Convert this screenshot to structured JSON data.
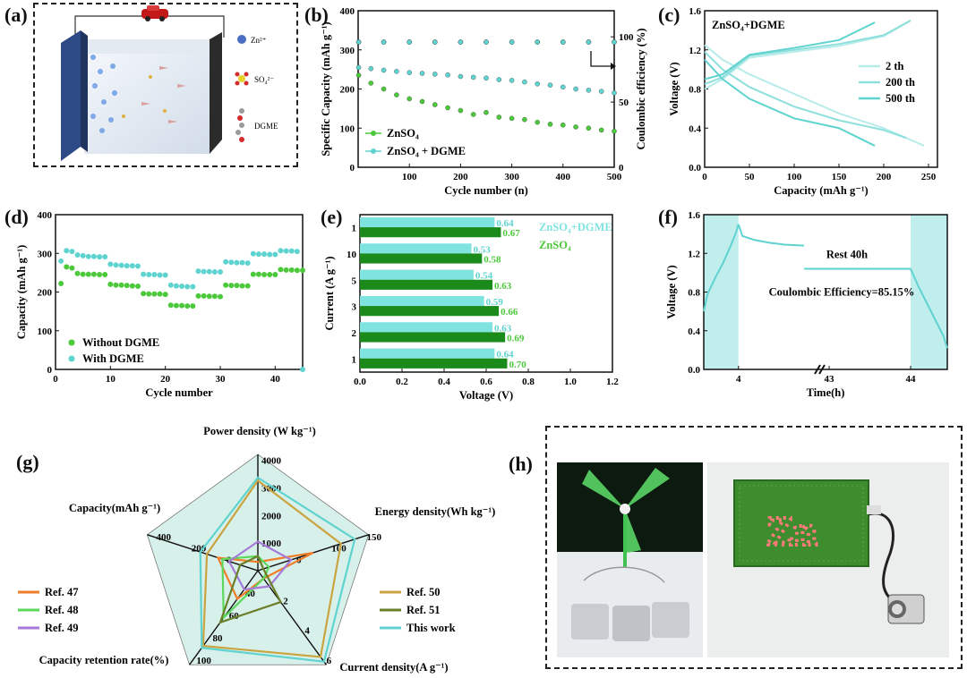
{
  "panels": {
    "a": {
      "label": "(a)",
      "legend": [
        "Zn²⁺",
        "SO₄²⁻",
        "DGME"
      ]
    },
    "b": {
      "label": "(b)"
    },
    "c": {
      "label": "(c)"
    },
    "d": {
      "label": "(d)"
    },
    "e": {
      "label": "(e)"
    },
    "f": {
      "label": "(f)"
    },
    "g": {
      "label": "(g)"
    },
    "h": {
      "label": "(h)",
      "led_text": "Zn"
    }
  },
  "chart_data": [
    {
      "id": "b",
      "type": "scatter",
      "xlabel": "Cycle number (n)",
      "ylabel": "Specific Capacity (mAh g⁻¹)",
      "y2label": "Coulombic efficiency (%)",
      "xlim": [
        0,
        500
      ],
      "ylim": [
        0,
        400
      ],
      "y2lim": [
        0,
        120
      ],
      "xticks": [
        100,
        200,
        300,
        400,
        500
      ],
      "yticks": [
        0,
        100,
        200,
        300,
        400
      ],
      "y2ticks": [
        0,
        50,
        100
      ],
      "series": [
        {
          "name": "ZnSO₄",
          "axis": "left",
          "color": "#4cc93b",
          "x": [
            1,
            25,
            50,
            75,
            100,
            125,
            150,
            175,
            200,
            225,
            250,
            275,
            300,
            325,
            350,
            375,
            400,
            425,
            450,
            475,
            500
          ],
          "y": [
            235,
            215,
            200,
            185,
            175,
            168,
            160,
            152,
            145,
            135,
            140,
            128,
            125,
            122,
            115,
            110,
            108,
            103,
            100,
            95,
            92
          ]
        },
        {
          "name": "ZnSO₄ + DGME",
          "axis": "left",
          "color": "#5fd3cf",
          "x": [
            1,
            25,
            50,
            75,
            100,
            125,
            150,
            175,
            200,
            225,
            250,
            275,
            300,
            325,
            350,
            375,
            400,
            425,
            450,
            475,
            500
          ],
          "y": [
            255,
            252,
            248,
            245,
            242,
            240,
            238,
            236,
            232,
            230,
            228,
            224,
            222,
            218,
            213,
            210,
            205,
            200,
            197,
            194,
            190
          ]
        },
        {
          "name": "ZnSO₄ CE",
          "axis": "right",
          "color": "#4cc93b",
          "x": [
            1,
            50,
            100,
            150,
            200,
            250,
            300,
            350,
            400,
            450,
            500
          ],
          "y": [
            96,
            96,
            96,
            96,
            96,
            96,
            96,
            96,
            96,
            96,
            96
          ]
        },
        {
          "name": "ZnSO₄ + DGME CE",
          "axis": "right",
          "color": "#5fd3cf",
          "x": [
            1,
            50,
            100,
            150,
            200,
            250,
            300,
            350,
            400,
            450,
            500
          ],
          "y": [
            96,
            96,
            96,
            96,
            96,
            96,
            96,
            96,
            96,
            96,
            96
          ]
        }
      ]
    },
    {
      "id": "c",
      "type": "line",
      "title": "ZnSO₄+DGME",
      "xlabel": "Capacity (mAh g⁻¹)",
      "ylabel": "Voltage (V)",
      "xlim": [
        0,
        260
      ],
      "ylim": [
        0.0,
        1.6
      ],
      "xticks": [
        0,
        50,
        100,
        150,
        200,
        250
      ],
      "yticks": [
        0.0,
        0.4,
        0.8,
        1.2,
        1.6
      ],
      "series": [
        {
          "name": "2 th",
          "color": "#b7ecea",
          "charge": {
            "x": [
              0,
              20,
              50,
              100,
              150,
              200,
              230
            ],
            "y": [
              0.8,
              0.9,
              1.12,
              1.18,
              1.24,
              1.34,
              1.5
            ]
          },
          "discharge": {
            "x": [
              0,
              20,
              50,
              100,
              150,
              200,
              245
            ],
            "y": [
              1.25,
              1.1,
              0.95,
              0.75,
              0.55,
              0.4,
              0.22
            ]
          }
        },
        {
          "name": "200 th",
          "color": "#8ddfdc",
          "charge": {
            "x": [
              0,
              20,
              50,
              100,
              150,
              200,
              230
            ],
            "y": [
              0.85,
              0.92,
              1.14,
              1.2,
              1.26,
              1.35,
              1.5
            ]
          },
          "discharge": {
            "x": [
              0,
              20,
              50,
              100,
              150,
              200,
              225
            ],
            "y": [
              1.18,
              1.0,
              0.82,
              0.62,
              0.48,
              0.38,
              0.3
            ]
          }
        },
        {
          "name": "500 th",
          "color": "#5fd3cf",
          "charge": {
            "x": [
              0,
              20,
              50,
              100,
              150,
              190
            ],
            "y": [
              0.9,
              0.95,
              1.15,
              1.22,
              1.3,
              1.48
            ]
          },
          "discharge": {
            "x": [
              0,
              20,
              50,
              100,
              150,
              190
            ],
            "y": [
              1.1,
              0.9,
              0.7,
              0.5,
              0.4,
              0.22
            ]
          }
        }
      ]
    },
    {
      "id": "d",
      "type": "scatter",
      "xlabel": "Cycle number",
      "ylabel": "Capacity (mAh g⁻¹)",
      "xlim": [
        0,
        45
      ],
      "ylim": [
        0,
        400
      ],
      "xticks": [
        0,
        10,
        20,
        30,
        40
      ],
      "yticks": [
        0,
        100,
        200,
        300,
        400
      ],
      "series": [
        {
          "name": "Without DGME",
          "color": "#4cc93b",
          "x": [
            1,
            2,
            3,
            4,
            5,
            6,
            7,
            8,
            9,
            10,
            11,
            12,
            13,
            14,
            15,
            16,
            17,
            18,
            19,
            20,
            21,
            22,
            23,
            24,
            25,
            26,
            27,
            28,
            29,
            30,
            31,
            32,
            33,
            34,
            35,
            36,
            37,
            38,
            39,
            40,
            41,
            42,
            43,
            44,
            45
          ],
          "y": [
            222,
            265,
            262,
            248,
            246,
            246,
            246,
            245,
            245,
            220,
            218,
            218,
            217,
            216,
            215,
            196,
            195,
            195,
            195,
            194,
            166,
            165,
            165,
            164,
            164,
            190,
            190,
            189,
            189,
            188,
            218,
            217,
            217,
            216,
            216,
            246,
            246,
            245,
            245,
            245,
            258,
            257,
            257,
            256,
            256
          ]
        },
        {
          "name": "With DGME",
          "color": "#5fd3cf",
          "x": [
            1,
            2,
            3,
            4,
            5,
            6,
            7,
            8,
            9,
            10,
            11,
            12,
            13,
            14,
            15,
            16,
            17,
            18,
            19,
            20,
            21,
            22,
            23,
            24,
            25,
            26,
            27,
            28,
            29,
            30,
            31,
            32,
            33,
            34,
            35,
            36,
            37,
            38,
            39,
            40,
            41,
            42,
            43,
            44,
            45
          ],
          "y": [
            280,
            307,
            305,
            296,
            294,
            292,
            292,
            291,
            291,
            272,
            270,
            269,
            268,
            268,
            267,
            246,
            245,
            245,
            244,
            244,
            218,
            216,
            215,
            214,
            214,
            254,
            253,
            253,
            252,
            252,
            278,
            277,
            276,
            276,
            275,
            299,
            298,
            298,
            297,
            297,
            307,
            306,
            306,
            305,
            0
          ]
        }
      ]
    },
    {
      "id": "e",
      "type": "bar",
      "orientation": "horizontal",
      "xlabel": "Voltage (V)",
      "ylabel": "Current (A g⁻¹)",
      "xlim": [
        0.0,
        1.2
      ],
      "xticks": [
        0.0,
        0.2,
        0.4,
        0.6,
        0.8,
        1.0,
        1.2
      ],
      "categories": [
        "1",
        "2",
        "3",
        "5",
        "10",
        "1"
      ],
      "series": [
        {
          "name": "ZnSO₄+DGME",
          "color": "#7fe3df",
          "values": [
            0.64,
            0.63,
            0.59,
            0.54,
            0.53,
            0.64
          ]
        },
        {
          "name": "ZnSO₄",
          "color": "#1a8a1a",
          "values": [
            0.7,
            0.69,
            0.66,
            0.63,
            0.58,
            0.67
          ]
        }
      ],
      "value_labels_dgme": [
        "0.64",
        "0.63",
        "0.59",
        "0.54",
        "0.53",
        "0.64"
      ],
      "value_labels_znso4": [
        "0.70",
        "0.69",
        "0.66",
        "0.63",
        "0.58",
        "0.67"
      ]
    },
    {
      "id": "f",
      "type": "line",
      "xlabel": "Time(h)",
      "ylabel": "Voltage (V)",
      "ylim": [
        0.0,
        1.6
      ],
      "xticks": [
        "4",
        "43",
        "44"
      ],
      "yticks": [
        0.0,
        0.4,
        0.8,
        1.2,
        1.6
      ],
      "annotations": [
        "Rest 40h",
        "Coulombic Efficiency=85.15%"
      ],
      "series": [
        {
          "name": "charge",
          "color": "#5fd3cf",
          "t": [
            3.55,
            3.6,
            3.7,
            3.8,
            3.9,
            3.97,
            4.0
          ],
          "v": [
            0.6,
            0.78,
            0.95,
            1.1,
            1.28,
            1.42,
            1.5
          ]
        },
        {
          "name": "rest",
          "color": "#5fd3cf",
          "t": [
            4.0,
            4.05,
            4.2,
            4.4,
            4.6,
            4.85
          ],
          "v": [
            1.5,
            1.38,
            1.34,
            1.31,
            1.29,
            1.28
          ]
        },
        {
          "name": "rest-late",
          "color": "#5fd3cf",
          "t": [
            43.0,
            43.5,
            44.0
          ],
          "v": [
            1.04,
            1.04,
            1.04
          ]
        },
        {
          "name": "discharge",
          "color": "#5fd3cf",
          "t": [
            44.0,
            44.1,
            44.25,
            44.4,
            44.45
          ],
          "v": [
            1.04,
            0.85,
            0.6,
            0.35,
            0.22
          ]
        }
      ]
    },
    {
      "id": "g",
      "type": "radar",
      "axes": [
        {
          "label": "Power density (W kg⁻¹)",
          "max": 4000,
          "ticks": [
            "1000",
            "2000",
            "3000",
            "4000"
          ]
        },
        {
          "label": "Energy density(Wh kg⁻¹)",
          "max": 200,
          "ticks": [
            "0",
            "100",
            "150"
          ]
        },
        {
          "label": "Current density(A g⁻¹)",
          "max": 6,
          "ticks": [
            "2",
            "4",
            "6"
          ]
        },
        {
          "label": "Capacity retention rate(%)",
          "max": 100,
          "ticks": [
            "40",
            "60",
            "80",
            "100"
          ]
        },
        {
          "label": "Capacity(mAh g⁻¹)",
          "max": 500,
          "ticks": [
            "0",
            "200",
            "400"
          ]
        }
      ],
      "series": [
        {
          "name": "Ref. 47",
          "color": "#f07d28",
          "values": [
            300,
            100,
            0.5,
            30,
            180
          ]
        },
        {
          "name": "Ref. 48",
          "color": "#5bd95b",
          "values": [
            500,
            20,
            0.5,
            50,
            160
          ]
        },
        {
          "name": "Ref. 49",
          "color": "#a57ad9",
          "values": [
            1000,
            60,
            1,
            20,
            130
          ]
        },
        {
          "name": "Ref. 50",
          "color": "#c9a440",
          "values": [
            3100,
            150,
            5.5,
            80,
            230
          ]
        },
        {
          "name": "Ref. 51",
          "color": "#6b7f2a",
          "values": [
            500,
            10,
            2,
            55,
            80
          ]
        },
        {
          "name": "This work",
          "color": "#5fd3cf",
          "values": [
            3200,
            175,
            5.8,
            82,
            260
          ]
        }
      ]
    }
  ]
}
